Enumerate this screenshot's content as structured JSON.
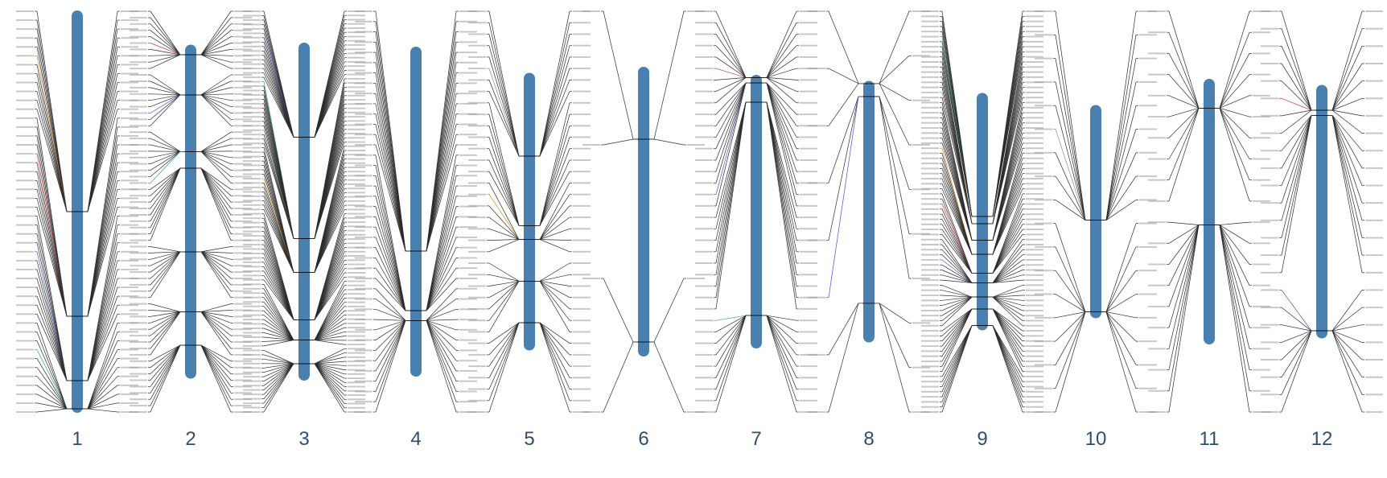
{
  "colors": {
    "chromosome_fill": "#4a80b0",
    "connector_default": "#2b2b2b",
    "connector_accents": [
      "#e0861e",
      "#cc3333",
      "#3a55cc",
      "#2aa08c",
      "#8a8a8a"
    ],
    "chromosome_number_color": "#2f4f6f"
  },
  "chromosomes": [
    {
      "id": "1",
      "label": "1",
      "relative_length": 1.0,
      "marker_clusters": [
        0.5,
        0.76,
        0.92,
        0.99
      ],
      "left_label_count": 46,
      "right_label_count": 46,
      "accent_lines": 4
    },
    {
      "id": "2",
      "label": "2",
      "relative_length": 0.83,
      "marker_clusters": [
        0.03,
        0.15,
        0.32,
        0.37,
        0.62,
        0.8,
        0.9
      ],
      "left_label_count": 64,
      "right_label_count": 64,
      "accent_lines": 3
    },
    {
      "id": "3",
      "label": "3",
      "relative_length": 0.84,
      "marker_clusters": [
        0.28,
        0.58,
        0.68,
        0.82,
        0.88,
        0.95
      ],
      "left_label_count": 92,
      "right_label_count": 96,
      "accent_lines": 4
    },
    {
      "id": "4",
      "label": "4",
      "relative_length": 0.82,
      "marker_clusters": [
        0.62,
        0.8,
        0.83
      ],
      "left_label_count": 40,
      "right_label_count": 40,
      "accent_lines": 0
    },
    {
      "id": "5",
      "label": "5",
      "relative_length": 0.69,
      "marker_clusters": [
        0.3,
        0.55,
        0.6,
        0.75,
        0.9
      ],
      "left_label_count": 36,
      "right_label_count": 36,
      "accent_lines": 2
    },
    {
      "id": "6",
      "label": "6",
      "relative_length": 0.72,
      "marker_clusters": [
        0.25,
        0.95
      ],
      "left_label_count": 4,
      "right_label_count": 4,
      "accent_lines": 0
    },
    {
      "id": "7",
      "label": "7",
      "relative_length": 0.68,
      "marker_clusters": [
        0.01,
        0.03,
        0.1,
        0.88
      ],
      "left_label_count": 36,
      "right_label_count": 36,
      "accent_lines": 3
    },
    {
      "id": "8",
      "label": "8",
      "relative_length": 0.65,
      "marker_clusters": [
        0.01,
        0.06,
        0.85
      ],
      "left_label_count": 8,
      "right_label_count": 10,
      "accent_lines": 1
    },
    {
      "id": "9",
      "label": "9",
      "relative_length": 0.59,
      "marker_clusters": [
        0.52,
        0.55,
        0.62,
        0.68,
        0.76,
        0.8,
        0.86,
        0.91,
        0.98
      ],
      "left_label_count": 80,
      "right_label_count": 80,
      "accent_lines": 5
    },
    {
      "id": "10",
      "label": "10",
      "relative_length": 0.53,
      "marker_clusters": [
        0.54,
        0.97
      ],
      "left_label_count": 18,
      "right_label_count": 18,
      "accent_lines": 1
    },
    {
      "id": "11",
      "label": "11",
      "relative_length": 0.66,
      "marker_clusters": [
        0.11,
        0.55
      ],
      "left_label_count": 20,
      "right_label_count": 20,
      "accent_lines": 0
    },
    {
      "id": "12",
      "label": "12",
      "relative_length": 0.63,
      "marker_clusters": [
        0.1,
        0.12,
        0.97
      ],
      "left_label_count": 24,
      "right_label_count": 24,
      "accent_lines": 2
    }
  ]
}
